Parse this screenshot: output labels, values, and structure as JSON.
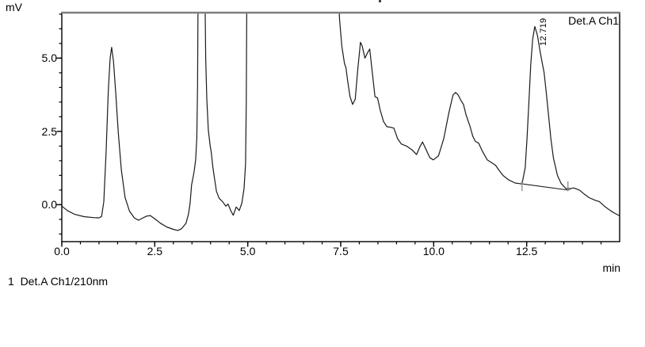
{
  "labels": {
    "y_axis_unit": "mV",
    "x_axis_unit": "min",
    "channel": "Det.A Ch1",
    "footer": "1  Det.A Ch1/210nm"
  },
  "chart_data": {
    "type": "line",
    "title": "",
    "ylabel": "mV",
    "xlabel": "min",
    "legend": [
      "Det.A Ch1"
    ],
    "legend_position": "top-right-inside",
    "grid": false,
    "x_axis": {
      "min": 0,
      "max": 15,
      "minor_step": 0.5,
      "minor_start": 0,
      "minor_end": 14.5,
      "major_ticks": [
        {
          "value": 0,
          "label": "0.0"
        },
        {
          "value": 2.5,
          "label": "2.5"
        },
        {
          "value": 5,
          "label": "5.0"
        },
        {
          "value": 7.5,
          "label": "7.5"
        },
        {
          "value": 10,
          "label": "10.0"
        },
        {
          "value": 12.5,
          "label": "12.5"
        }
      ]
    },
    "y_axis": {
      "min": -1.26,
      "max": 6.55,
      "minor_step": 0.5,
      "minor_start": -1.0,
      "minor_end": 6.5,
      "major_ticks": [
        {
          "value": 0,
          "label": "0.0"
        },
        {
          "value": 2.5,
          "label": "2.5"
        },
        {
          "value": 5,
          "label": "5.0"
        }
      ]
    },
    "colors": {
      "trace": "#1a1a1a",
      "frame": "#000000",
      "frame_top": "#808080",
      "marker": "#808080",
      "text": "#000000"
    },
    "peaks": [
      {
        "label": "12.719",
        "apex_t": 12.72,
        "apex_mv": 6.08
      }
    ],
    "baseline_segment": {
      "from": [
        12.375,
        0.71
      ],
      "to": [
        13.61,
        0.5
      ]
    },
    "integration_markers": [
      {
        "t": 12.375,
        "mv": 0.71,
        "direction": "up"
      },
      {
        "t": 13.61,
        "mv": 0.5,
        "direction": "down"
      }
    ],
    "offscale_note": "signal exceeds plot top between t=3.66-3.85 and t=4.97-7.44 (clipped)",
    "series": [
      {
        "name": "Det.A Ch1/210nm",
        "points": [
          [
            0.0,
            -0.05
          ],
          [
            0.15,
            -0.2
          ],
          [
            0.35,
            -0.33
          ],
          [
            0.6,
            -0.41
          ],
          [
            0.85,
            -0.44
          ],
          [
            1.0,
            -0.45
          ],
          [
            1.07,
            -0.4
          ],
          [
            1.13,
            0.1
          ],
          [
            1.19,
            1.8
          ],
          [
            1.25,
            3.9
          ],
          [
            1.3,
            5.0
          ],
          [
            1.34,
            5.37
          ],
          [
            1.39,
            4.9
          ],
          [
            1.45,
            3.8
          ],
          [
            1.52,
            2.45
          ],
          [
            1.6,
            1.2
          ],
          [
            1.7,
            0.25
          ],
          [
            1.82,
            -0.22
          ],
          [
            1.95,
            -0.45
          ],
          [
            2.06,
            -0.53
          ],
          [
            2.17,
            -0.46
          ],
          [
            2.28,
            -0.39
          ],
          [
            2.38,
            -0.37
          ],
          [
            2.5,
            -0.48
          ],
          [
            2.65,
            -0.63
          ],
          [
            2.82,
            -0.76
          ],
          [
            3.0,
            -0.84
          ],
          [
            3.12,
            -0.88
          ],
          [
            3.22,
            -0.82
          ],
          [
            3.34,
            -0.63
          ],
          [
            3.41,
            -0.3
          ],
          [
            3.45,
            0.05
          ],
          [
            3.49,
            0.68
          ],
          [
            3.52,
            0.87
          ],
          [
            3.56,
            1.15
          ],
          [
            3.6,
            1.55
          ],
          [
            3.63,
            2.3
          ],
          [
            3.65,
            4.0
          ],
          [
            3.665,
            7.2
          ],
          [
            3.85,
            7.2
          ],
          [
            3.87,
            5.0
          ],
          [
            3.9,
            3.6
          ],
          [
            3.94,
            2.55
          ],
          [
            3.99,
            2.0
          ],
          [
            4.02,
            1.77
          ],
          [
            4.06,
            1.31
          ],
          [
            4.1,
            0.95
          ],
          [
            4.16,
            0.45
          ],
          [
            4.23,
            0.22
          ],
          [
            4.33,
            0.09
          ],
          [
            4.41,
            -0.05
          ],
          [
            4.47,
            0.02
          ],
          [
            4.55,
            -0.22
          ],
          [
            4.61,
            -0.36
          ],
          [
            4.69,
            -0.08
          ],
          [
            4.77,
            -0.2
          ],
          [
            4.84,
            0.05
          ],
          [
            4.9,
            0.55
          ],
          [
            4.94,
            1.4
          ],
          [
            4.96,
            3.5
          ],
          [
            4.975,
            7.2
          ],
          [
            7.435,
            7.2
          ],
          [
            7.47,
            6.3
          ],
          [
            7.53,
            5.41
          ],
          [
            7.6,
            4.82
          ],
          [
            7.64,
            4.67
          ],
          [
            7.69,
            4.19
          ],
          [
            7.75,
            3.69
          ],
          [
            7.82,
            3.42
          ],
          [
            7.89,
            3.6
          ],
          [
            7.96,
            4.64
          ],
          [
            8.03,
            5.54
          ],
          [
            8.08,
            5.41
          ],
          [
            8.15,
            5.0
          ],
          [
            8.22,
            5.18
          ],
          [
            8.28,
            5.31
          ],
          [
            8.35,
            4.5
          ],
          [
            8.42,
            3.69
          ],
          [
            8.49,
            3.64
          ],
          [
            8.56,
            3.24
          ],
          [
            8.65,
            2.84
          ],
          [
            8.74,
            2.66
          ],
          [
            8.85,
            2.64
          ],
          [
            8.93,
            2.61
          ],
          [
            9.03,
            2.25
          ],
          [
            9.13,
            2.07
          ],
          [
            9.27,
            2.0
          ],
          [
            9.42,
            1.87
          ],
          [
            9.54,
            1.71
          ],
          [
            9.63,
            1.98
          ],
          [
            9.7,
            2.14
          ],
          [
            9.79,
            1.89
          ],
          [
            9.9,
            1.6
          ],
          [
            9.99,
            1.53
          ],
          [
            10.13,
            1.67
          ],
          [
            10.27,
            2.25
          ],
          [
            10.41,
            3.15
          ],
          [
            10.52,
            3.74
          ],
          [
            10.59,
            3.83
          ],
          [
            10.66,
            3.74
          ],
          [
            10.73,
            3.56
          ],
          [
            10.8,
            3.42
          ],
          [
            10.87,
            3.06
          ],
          [
            10.98,
            2.66
          ],
          [
            11.05,
            2.34
          ],
          [
            11.12,
            2.16
          ],
          [
            11.21,
            2.1
          ],
          [
            11.3,
            1.85
          ],
          [
            11.44,
            1.53
          ],
          [
            11.55,
            1.44
          ],
          [
            11.66,
            1.35
          ],
          [
            11.76,
            1.17
          ],
          [
            11.87,
            0.99
          ],
          [
            12.01,
            0.85
          ],
          [
            12.19,
            0.74
          ],
          [
            12.3,
            0.72
          ],
          [
            12.375,
            0.71
          ],
          [
            12.46,
            1.26
          ],
          [
            12.51,
            2.25
          ],
          [
            12.56,
            3.51
          ],
          [
            12.61,
            4.77
          ],
          [
            12.66,
            5.63
          ],
          [
            12.71,
            6.02
          ],
          [
            12.72,
            6.08
          ],
          [
            12.79,
            5.77
          ],
          [
            12.86,
            5.23
          ],
          [
            12.92,
            4.82
          ],
          [
            12.97,
            4.5
          ],
          [
            13.03,
            3.8
          ],
          [
            13.08,
            3.15
          ],
          [
            13.15,
            2.25
          ],
          [
            13.22,
            1.58
          ],
          [
            13.33,
            0.99
          ],
          [
            13.43,
            0.72
          ],
          [
            13.54,
            0.57
          ],
          [
            13.61,
            0.5
          ],
          [
            13.7,
            0.56
          ],
          [
            13.77,
            0.57
          ],
          [
            13.92,
            0.5
          ],
          [
            14.05,
            0.36
          ],
          [
            14.18,
            0.24
          ],
          [
            14.36,
            0.14
          ],
          [
            14.45,
            0.11
          ],
          [
            14.6,
            -0.06
          ],
          [
            14.75,
            -0.2
          ],
          [
            14.88,
            -0.3
          ],
          [
            15.0,
            -0.38
          ]
        ]
      }
    ]
  }
}
